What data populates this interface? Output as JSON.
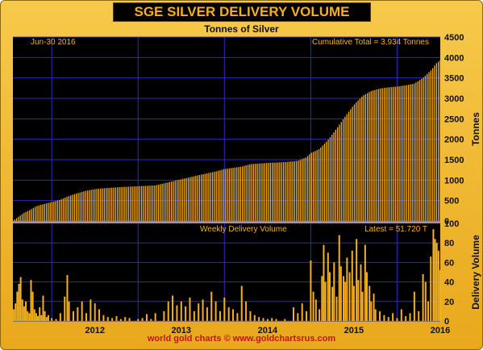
{
  "header": {
    "title": "SGE SILVER DELIVERY VOLUME",
    "subtitle": "Tonnes of Silver",
    "date_label": "Jun-30  2016",
    "cumulative_label": "Cumulative Total = 3,934 Tonnes",
    "weekly_label": "Weekly Delivery Volume",
    "latest_label": "Latest = 51.720 T",
    "footer": "world gold charts © www.goldchartsrus.com"
  },
  "colors": {
    "background": "#000000",
    "bars": "#f6b01c",
    "grid": "#2c2cb8",
    "frame": "#eeb52e",
    "footer_text": "#c0161a"
  },
  "chart_data": [
    {
      "type": "bar",
      "title": "Tonnes of Silver",
      "ylabel": "Tonnes",
      "ylim": [
        0,
        4500
      ],
      "yticks": [
        0,
        500,
        1000,
        1500,
        2000,
        2500,
        3000,
        3500,
        4000,
        4500
      ],
      "grid": true,
      "x_tick_labels": [
        "2012",
        "2013",
        "2014",
        "2015",
        "2016"
      ],
      "x_range": [
        2011.55,
        2016.5
      ],
      "series": [
        {
          "name": "Cumulative",
          "points": [
            [
              2011.55,
              0
            ],
            [
              2011.6,
              80
            ],
            [
              2011.68,
              200
            ],
            [
              2011.75,
              270
            ],
            [
              2011.82,
              360
            ],
            [
              2011.9,
              410
            ],
            [
              2012.0,
              460
            ],
            [
              2012.1,
              520
            ],
            [
              2012.2,
              610
            ],
            [
              2012.3,
              680
            ],
            [
              2012.4,
              740
            ],
            [
              2012.5,
              780
            ],
            [
              2012.6,
              800
            ],
            [
              2012.8,
              830
            ],
            [
              2013.0,
              850
            ],
            [
              2013.2,
              870
            ],
            [
              2013.3,
              920
            ],
            [
              2013.5,
              1020
            ],
            [
              2013.7,
              1120
            ],
            [
              2013.9,
              1210
            ],
            [
              2014.0,
              1270
            ],
            [
              2014.2,
              1330
            ],
            [
              2014.3,
              1390
            ],
            [
              2014.5,
              1420
            ],
            [
              2014.7,
              1440
            ],
            [
              2014.85,
              1470
            ],
            [
              2014.95,
              1560
            ],
            [
              2015.0,
              1660
            ],
            [
              2015.1,
              1760
            ],
            [
              2015.2,
              1980
            ],
            [
              2015.3,
              2260
            ],
            [
              2015.4,
              2560
            ],
            [
              2015.5,
              2840
            ],
            [
              2015.6,
              3060
            ],
            [
              2015.7,
              3180
            ],
            [
              2015.8,
              3240
            ],
            [
              2015.9,
              3270
            ],
            [
              2016.0,
              3290
            ],
            [
              2016.1,
              3320
            ],
            [
              2016.2,
              3360
            ],
            [
              2016.3,
              3500
            ],
            [
              2016.4,
              3700
            ],
            [
              2016.45,
              3850
            ],
            [
              2016.5,
              3934
            ]
          ]
        }
      ]
    },
    {
      "type": "bar",
      "title": "Weekly Delivery Volume",
      "ylabel": "Delivery Volume",
      "ylim": [
        0,
        100
      ],
      "yticks": [
        0,
        20,
        40,
        60,
        80,
        100
      ],
      "grid": true,
      "x_tick_labels": [
        "2012",
        "2013",
        "2014",
        "2015",
        "2016"
      ],
      "x_range": [
        2011.55,
        2016.5
      ],
      "series": [
        {
          "name": "Weekly",
          "points": [
            [
              2011.56,
              12
            ],
            [
              2011.58,
              18
            ],
            [
              2011.6,
              30
            ],
            [
              2011.62,
              38
            ],
            [
              2011.64,
              45
            ],
            [
              2011.66,
              22
            ],
            [
              2011.68,
              15
            ],
            [
              2011.7,
              20
            ],
            [
              2011.72,
              10
            ],
            [
              2011.74,
              8
            ],
            [
              2011.76,
              42
            ],
            [
              2011.78,
              30
            ],
            [
              2011.8,
              12
            ],
            [
              2011.82,
              8
            ],
            [
              2011.84,
              5
            ],
            [
              2011.86,
              14
            ],
            [
              2011.88,
              6
            ],
            [
              2011.9,
              26
            ],
            [
              2011.92,
              10
            ],
            [
              2011.94,
              4
            ],
            [
              2011.96,
              6
            ],
            [
              2012.0,
              3
            ],
            [
              2012.05,
              2
            ],
            [
              2012.1,
              8
            ],
            [
              2012.15,
              25
            ],
            [
              2012.18,
              47
            ],
            [
              2012.2,
              20
            ],
            [
              2012.25,
              10
            ],
            [
              2012.3,
              14
            ],
            [
              2012.35,
              20
            ],
            [
              2012.4,
              8
            ],
            [
              2012.45,
              22
            ],
            [
              2012.5,
              18
            ],
            [
              2012.55,
              12
            ],
            [
              2012.6,
              6
            ],
            [
              2012.65,
              4
            ],
            [
              2012.7,
              3
            ],
            [
              2012.75,
              5
            ],
            [
              2012.8,
              2
            ],
            [
              2012.85,
              4
            ],
            [
              2012.9,
              3
            ],
            [
              2013.0,
              2
            ],
            [
              2013.05,
              3
            ],
            [
              2013.1,
              7
            ],
            [
              2013.15,
              2
            ],
            [
              2013.2,
              8
            ],
            [
              2013.3,
              10
            ],
            [
              2013.35,
              20
            ],
            [
              2013.4,
              26
            ],
            [
              2013.45,
              16
            ],
            [
              2013.5,
              20
            ],
            [
              2013.55,
              15
            ],
            [
              2013.6,
              24
            ],
            [
              2013.65,
              10
            ],
            [
              2013.7,
              18
            ],
            [
              2013.75,
              22
            ],
            [
              2013.8,
              14
            ],
            [
              2013.85,
              30
            ],
            [
              2013.9,
              20
            ],
            [
              2013.95,
              10
            ],
            [
              2014.0,
              24
            ],
            [
              2014.05,
              14
            ],
            [
              2014.1,
              12
            ],
            [
              2014.15,
              8
            ],
            [
              2014.2,
              36
            ],
            [
              2014.25,
              20
            ],
            [
              2014.3,
              10
            ],
            [
              2014.35,
              6
            ],
            [
              2014.4,
              4
            ],
            [
              2014.45,
              3
            ],
            [
              2014.5,
              2
            ],
            [
              2014.55,
              3
            ],
            [
              2014.6,
              2
            ],
            [
              2014.7,
              2
            ],
            [
              2014.8,
              14
            ],
            [
              2014.85,
              8
            ],
            [
              2014.9,
              18
            ],
            [
              2014.95,
              10
            ],
            [
              2015.0,
              62
            ],
            [
              2015.03,
              30
            ],
            [
              2015.06,
              22
            ],
            [
              2015.1,
              12
            ],
            [
              2015.13,
              46
            ],
            [
              2015.15,
              78
            ],
            [
              2015.17,
              40
            ],
            [
              2015.2,
              70
            ],
            [
              2015.22,
              50
            ],
            [
              2015.25,
              35
            ],
            [
              2015.27,
              60
            ],
            [
              2015.3,
              25
            ],
            [
              2015.33,
              88
            ],
            [
              2015.35,
              56
            ],
            [
              2015.38,
              46
            ],
            [
              2015.4,
              40
            ],
            [
              2015.42,
              65
            ],
            [
              2015.45,
              50
            ],
            [
              2015.48,
              72
            ],
            [
              2015.5,
              36
            ],
            [
              2015.53,
              84
            ],
            [
              2015.55,
              42
            ],
            [
              2015.58,
              58
            ],
            [
              2015.6,
              30
            ],
            [
              2015.63,
              78
            ],
            [
              2015.65,
              50
            ],
            [
              2015.68,
              36
            ],
            [
              2015.7,
              20
            ],
            [
              2015.73,
              28
            ],
            [
              2015.75,
              12
            ],
            [
              2015.8,
              10
            ],
            [
              2015.85,
              6
            ],
            [
              2015.9,
              4
            ],
            [
              2015.95,
              8
            ],
            [
              2016.0,
              3
            ],
            [
              2016.05,
              12
            ],
            [
              2016.1,
              5
            ],
            [
              2016.15,
              8
            ],
            [
              2016.2,
              30
            ],
            [
              2016.25,
              10
            ],
            [
              2016.3,
              48
            ],
            [
              2016.33,
              40
            ],
            [
              2016.36,
              20
            ],
            [
              2016.39,
              66
            ],
            [
              2016.42,
              94
            ],
            [
              2016.44,
              84
            ],
            [
              2016.46,
              80
            ],
            [
              2016.48,
              72
            ],
            [
              2016.5,
              52
            ]
          ]
        }
      ]
    }
  ]
}
